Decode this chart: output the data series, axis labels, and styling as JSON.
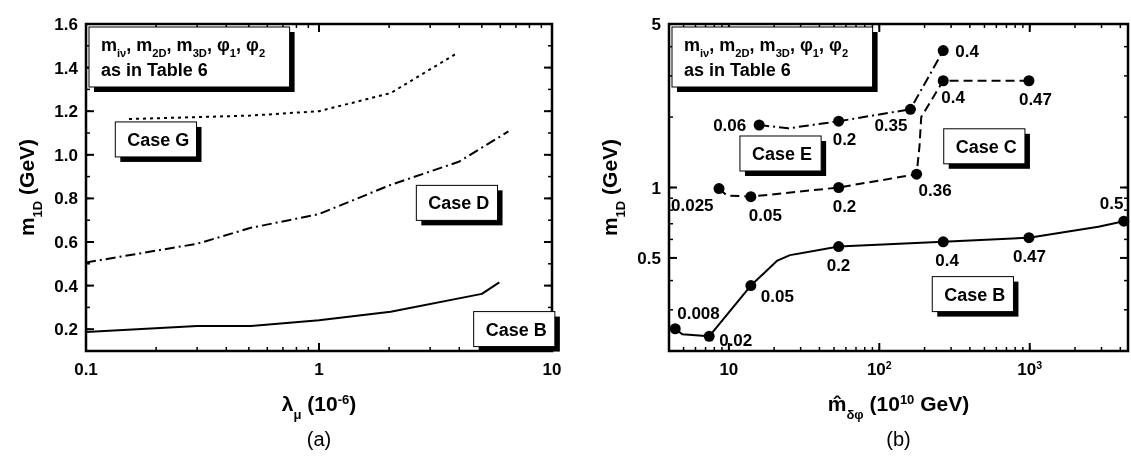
{
  "chart_data": [
    {
      "type": "line",
      "title": "(a)",
      "xlabel": "λ$_{μ}$ (10$^{-6}$)",
      "ylabel": "m$_{1D}$ (GeV)",
      "log": "x",
      "xlim": [
        0.1,
        10
      ],
      "xticks": [
        0.1,
        1,
        10
      ],
      "ylim": [
        0.1,
        1.6
      ],
      "yticks": [
        0.2,
        0.4,
        0.6,
        0.8,
        {
          "value": 1,
          "label": "1.0"
        },
        1.2,
        1.4,
        1.6
      ],
      "series": [
        {
          "name": "Case B",
          "line_style": "solid",
          "color": "#000000",
          "x": [
            0.1,
            0.3,
            0.51,
            1,
            2.03,
            5.0,
            5.94
          ],
          "values": [
            0.187,
            0.215,
            0.215,
            0.241,
            0.28,
            0.362,
            0.415
          ]
        },
        {
          "name": "Case D",
          "line_style": "dashdot",
          "color": "#000000",
          "x": [
            0.1,
            0.3,
            0.51,
            1,
            2.03,
            3.98,
            6.5
          ],
          "values": [
            0.506,
            0.592,
            0.665,
            0.728,
            0.862,
            0.968,
            1.107
          ]
        },
        {
          "name": "Case G",
          "line_style": "dotted",
          "color": "#000000",
          "x": [
            0.153,
            0.51,
            1,
            2.03,
            3.91
          ],
          "values": [
            1.164,
            1.18,
            1.2,
            1.283,
            1.466
          ]
        }
      ],
      "annotations": [
        "m$_{iν}$, m$_{2D}$, m$_{3D}$, φ$_{1}$, φ$_{2}$\nas in Table 6"
      ]
    },
    {
      "type": "line",
      "title": "(b)",
      "xlabel": "m̂$_{δφ}$ (10$^{10}$ GeV)",
      "ylabel": "m$_{1D}$ (GeV)",
      "log": "xy",
      "xlim": [
        4,
        4500
      ],
      "xticks": [
        10,
        {
          "value": 100,
          "label": "10$^{2}$"
        },
        {
          "value": 1000,
          "label": "10$^{3}$"
        }
      ],
      "ylim": [
        0.2,
        5
      ],
      "yticks": [
        0.5,
        1,
        5
      ],
      "series": [
        {
          "name": "Case B",
          "line_style": "solid",
          "color": "#000000",
          "x": [
            4.4,
            4.9,
            7.4,
            14,
            21,
            25.5,
            53.7,
            266,
            988,
            2860,
            4220
          ],
          "values": [
            0.249,
            0.236,
            0.231,
            0.381,
            0.487,
            0.514,
            0.559,
            0.586,
            0.61,
            0.68,
            0.718
          ]
        },
        {
          "type": "scatter",
          "marker": "circle",
          "color": "#000000",
          "x": [
            4.4,
            7.4,
            14,
            53.7,
            266,
            988,
            4220
          ],
          "values": [
            0.249,
            0.231,
            0.381,
            0.559,
            0.586,
            0.61,
            0.718
          ]
        },
        {
          "name": "Case C",
          "line_style": "dashed",
          "color": "#000000",
          "x": [
            8.6,
            9.7,
            14,
            53.7,
            177,
            185,
            190,
            266,
            988
          ],
          "values": [
            0.99,
            0.924,
            0.914,
            1.0,
            1.14,
            1.5,
            2.0,
            2.86,
            2.86
          ]
        },
        {
          "type": "scatter",
          "marker": "circle",
          "color": "#000000",
          "x": [
            8.6,
            14,
            53.7,
            177,
            266,
            988
          ],
          "values": [
            0.99,
            0.914,
            1.0,
            1.14,
            2.86,
            2.86
          ]
        },
        {
          "name": "Case E",
          "line_style": "dashdot",
          "color": "#000000",
          "x": [
            15.9,
            24.8,
            53.7,
            161,
            266
          ],
          "values": [
            1.85,
            1.79,
            1.92,
            2.16,
            3.85
          ]
        },
        {
          "type": "scatter",
          "marker": "circle",
          "color": "#000000",
          "x": [
            15.9,
            53.7,
            161,
            266
          ],
          "values": [
            1.85,
            1.92,
            2.16,
            3.85
          ]
        }
      ],
      "annotations": [
        "m$_{iν}$, m$_{2D}$, m$_{3D}$, φ$_{1}$, φ$_{2}$\nas in Table 6",
        {
          "text": "0.008",
          "x": 4.4,
          "y": 0.249
        },
        {
          "text": "0.02",
          "x": 7.4,
          "y": 0.231
        },
        {
          "text": "0.05",
          "x": 14,
          "y": 0.381
        },
        {
          "text": "0.2",
          "x": 53.7,
          "y": 0.559
        },
        {
          "text": "0.4",
          "x": 266,
          "y": 0.586
        },
        {
          "text": "0.47",
          "x": 988,
          "y": 0.61
        },
        {
          "text": "0.5",
          "x": 4220,
          "y": 0.718
        },
        {
          "text": "0.025",
          "x": 8.6,
          "y": 0.99
        },
        {
          "text": "0.05",
          "x": 14,
          "y": 0.914
        },
        {
          "text": "0.2",
          "x": 53.7,
          "y": 1.0
        },
        {
          "text": "0.36",
          "x": 177,
          "y": 1.14
        },
        {
          "text": "0.4",
          "x": 266,
          "y": 2.86
        },
        {
          "text": "0.47",
          "x": 988,
          "y": 2.86
        },
        {
          "text": "0.06",
          "x": 15.9,
          "y": 1.85
        },
        {
          "text": "0.2",
          "x": 53.7,
          "y": 1.92
        },
        {
          "text": "0.35",
          "x": 161,
          "y": 2.16
        },
        {
          "text": "0.4",
          "x": 266,
          "y": 3.85
        }
      ]
    }
  ]
}
